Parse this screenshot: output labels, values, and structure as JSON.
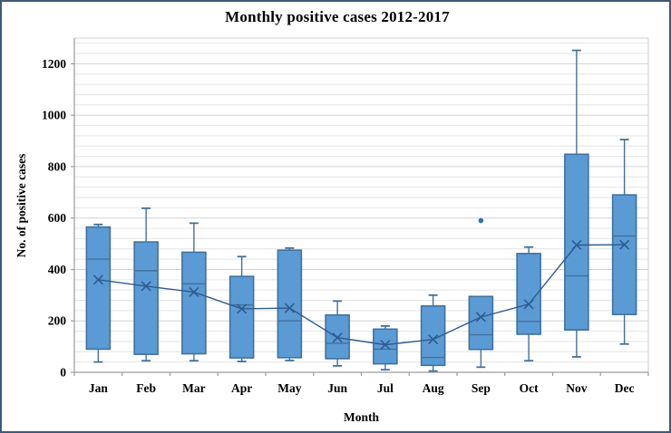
{
  "window": {
    "background": "#ffffff",
    "frame_border_color": "#3a5a78"
  },
  "chart_data": {
    "type": "box",
    "title": "Monthly positive cases 2012-2017",
    "xlabel": "Month",
    "ylabel": "No. of positive cases",
    "ylim": [
      0,
      1300
    ],
    "y_major_ticks": [
      "0",
      "200",
      "400",
      "600",
      "800",
      "1000",
      "1200"
    ],
    "y_major_step": 200,
    "y_minor_step": 40,
    "grid": "on",
    "legend": "none",
    "categories": [
      "Jan",
      "Feb",
      "Mar",
      "Apr",
      "May",
      "Jun",
      "Jul",
      "Aug",
      "Sep",
      "Oct",
      "Nov",
      "Dec"
    ],
    "boxes": [
      {
        "month": "Jan",
        "min": 40,
        "q1": 90,
        "median": 440,
        "q3": 565,
        "max": 575,
        "mean": 360,
        "outliers": []
      },
      {
        "month": "Feb",
        "min": 45,
        "q1": 70,
        "median": 395,
        "q3": 507,
        "max": 638,
        "mean": 335,
        "outliers": []
      },
      {
        "month": "Mar",
        "min": 45,
        "q1": 72,
        "median": 344,
        "q3": 467,
        "max": 580,
        "mean": 312,
        "outliers": []
      },
      {
        "month": "Apr",
        "min": 42,
        "q1": 56,
        "median": 262,
        "q3": 373,
        "max": 450,
        "mean": 247,
        "outliers": []
      },
      {
        "month": "May",
        "min": 46,
        "q1": 57,
        "median": 200,
        "q3": 475,
        "max": 483,
        "mean": 250,
        "outliers": []
      },
      {
        "month": "Jun",
        "min": 25,
        "q1": 53,
        "median": 113,
        "q3": 223,
        "max": 277,
        "mean": 135,
        "outliers": []
      },
      {
        "month": "Jul",
        "min": 10,
        "q1": 33,
        "median": 90,
        "q3": 168,
        "max": 180,
        "mean": 107,
        "outliers": []
      },
      {
        "month": "Aug",
        "min": 5,
        "q1": 27,
        "median": 58,
        "q3": 258,
        "max": 300,
        "mean": 128,
        "outliers": []
      },
      {
        "month": "Sep",
        "min": 20,
        "q1": 89,
        "median": 146,
        "q3": 295,
        "max": 295,
        "mean": 215,
        "outliers": [
          590
        ]
      },
      {
        "month": "Oct",
        "min": 45,
        "q1": 148,
        "median": 198,
        "q3": 462,
        "max": 487,
        "mean": 265,
        "outliers": []
      },
      {
        "month": "Nov",
        "min": 60,
        "q1": 165,
        "median": 375,
        "q3": 848,
        "max": 1252,
        "mean": 495,
        "outliers": []
      },
      {
        "month": "Dec",
        "min": 110,
        "q1": 225,
        "median": 530,
        "q3": 690,
        "max": 905,
        "mean": 496,
        "outliers": []
      }
    ],
    "mean_line": true,
    "colors": {
      "box_fill": "#5b9bd5",
      "box_border": "#41719c",
      "whisker": "#41719c",
      "median": "#41719c",
      "mean_marker": "#2f5b8f",
      "mean_line": "#2f5b8f",
      "outlier": "#2e74b5",
      "grid_minor": "#e4e4e4",
      "grid_major": "#d2d2d2",
      "axis_line": "#9b9b9b",
      "plot_border": "#cccccc",
      "text": "#000000"
    }
  }
}
